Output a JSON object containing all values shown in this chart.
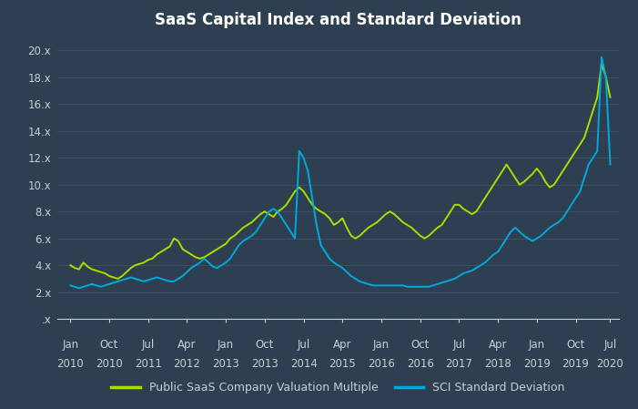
{
  "title": "SaaS Capital Index and Standard Deviation",
  "bg_color": "#2d3f50",
  "grid_color": "#3d5060",
  "text_color": "#c8d0d8",
  "line1_color": "#aadd00",
  "line2_color": "#00aadd",
  "line1_label": "Public SaaS Company Valuation Multiple",
  "line2_label": "SCI Standard Deviation",
  "yticks": [
    0,
    2,
    4,
    6,
    8,
    10,
    12,
    14,
    16,
    18,
    20
  ],
  "ytick_labels": [
    ".x",
    "2.x",
    "4.x",
    "6.x",
    "8.x",
    "10.x",
    "12.x",
    "14.x",
    "16.x",
    "18.x",
    "20.x"
  ],
  "xtick_labels_top": [
    "Jan",
    "Oct",
    "Jul",
    "Apr",
    "Jan",
    "Oct",
    "Jul",
    "Apr",
    "Jan",
    "Oct",
    "Jul",
    "Apr",
    "Jan",
    "Oct",
    "Jul"
  ],
  "xtick_labels_bot": [
    "2010",
    "2010",
    "2011",
    "2012",
    "2013",
    "2013",
    "2014",
    "2015",
    "2016",
    "2016",
    "2017",
    "2018",
    "2019",
    "2019",
    "2020"
  ],
  "saas_multiple": [
    4.0,
    3.8,
    3.7,
    4.2,
    3.9,
    3.7,
    3.6,
    3.5,
    3.4,
    3.2,
    3.1,
    3.0,
    3.2,
    3.5,
    3.8,
    4.0,
    4.1,
    4.2,
    4.4,
    4.5,
    4.8,
    5.0,
    5.2,
    5.4,
    6.0,
    5.8,
    5.2,
    5.0,
    4.8,
    4.6,
    4.5,
    4.6,
    4.8,
    5.0,
    5.2,
    5.4,
    5.6,
    6.0,
    6.2,
    6.5,
    6.8,
    7.0,
    7.2,
    7.5,
    7.8,
    8.0,
    7.8,
    7.6,
    8.0,
    8.2,
    8.5,
    9.0,
    9.5,
    9.8,
    9.5,
    9.0,
    8.5,
    8.2,
    8.0,
    7.8,
    7.5,
    7.0,
    7.2,
    7.5,
    6.8,
    6.2,
    6.0,
    6.2,
    6.5,
    6.8,
    7.0,
    7.2,
    7.5,
    7.8,
    8.0,
    7.8,
    7.5,
    7.2,
    7.0,
    6.8,
    6.5,
    6.2,
    6.0,
    6.2,
    6.5,
    6.8,
    7.0,
    7.5,
    8.0,
    8.5,
    8.5,
    8.2,
    8.0,
    7.8,
    8.0,
    8.5,
    9.0,
    9.5,
    10.0,
    10.5,
    11.0,
    11.5,
    11.0,
    10.5,
    10.0,
    10.2,
    10.5,
    10.8,
    11.2,
    10.8,
    10.2,
    9.8,
    10.0,
    10.5,
    11.0,
    11.5,
    12.0,
    12.5,
    13.0,
    13.5,
    14.5,
    15.5,
    16.5,
    19.0,
    18.0,
    16.5
  ],
  "sci_std": [
    2.5,
    2.4,
    2.3,
    2.4,
    2.5,
    2.6,
    2.5,
    2.4,
    2.5,
    2.6,
    2.7,
    2.8,
    2.9,
    3.0,
    3.1,
    3.0,
    2.9,
    2.8,
    2.9,
    3.0,
    3.1,
    3.0,
    2.9,
    2.8,
    2.8,
    3.0,
    3.2,
    3.5,
    3.8,
    4.0,
    4.2,
    4.5,
    4.2,
    3.9,
    3.8,
    4.0,
    4.2,
    4.5,
    5.0,
    5.5,
    5.8,
    6.0,
    6.2,
    6.5,
    7.0,
    7.5,
    8.0,
    8.2,
    8.0,
    7.5,
    7.0,
    6.5,
    6.0,
    12.5,
    12.0,
    11.0,
    9.0,
    7.0,
    5.5,
    5.0,
    4.5,
    4.2,
    4.0,
    3.8,
    3.5,
    3.2,
    3.0,
    2.8,
    2.7,
    2.6,
    2.5,
    2.5,
    2.5,
    2.5,
    2.5,
    2.5,
    2.5,
    2.5,
    2.4,
    2.4,
    2.4,
    2.4,
    2.4,
    2.4,
    2.5,
    2.6,
    2.7,
    2.8,
    2.9,
    3.0,
    3.2,
    3.4,
    3.5,
    3.6,
    3.8,
    4.0,
    4.2,
    4.5,
    4.8,
    5.0,
    5.5,
    6.0,
    6.5,
    6.8,
    6.5,
    6.2,
    6.0,
    5.8,
    6.0,
    6.2,
    6.5,
    6.8,
    7.0,
    7.2,
    7.5,
    8.0,
    8.5,
    9.0,
    9.5,
    10.5,
    11.5,
    12.0,
    12.5,
    19.5,
    18.0,
    11.5
  ]
}
